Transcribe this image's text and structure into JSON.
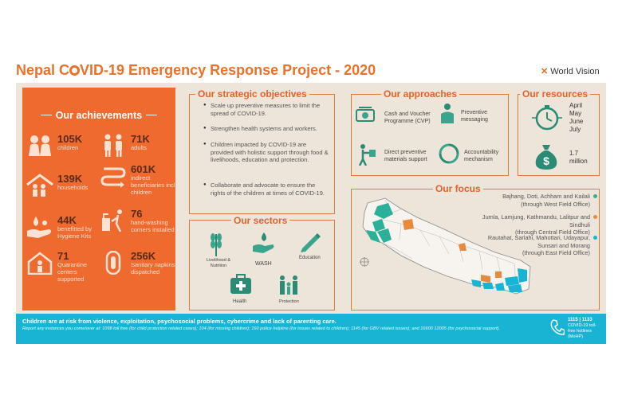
{
  "title": {
    "pre": "Nepal C",
    "post": "VID-19 Emergency Response Project - 2020"
  },
  "logo": "World Vision",
  "achievements": {
    "heading": "Our achievements",
    "items": [
      {
        "icon": "children-icon",
        "num": "105K",
        "label": "children"
      },
      {
        "icon": "adults-icon",
        "num": "71K",
        "label": "adults"
      },
      {
        "icon": "household-icon",
        "num": "139K",
        "label": "households"
      },
      {
        "icon": "beneficiaries-icon",
        "num": "601K",
        "label": "indirect beneficiaries incl. children"
      },
      {
        "icon": "hygiene-kit-icon",
        "num": "44K",
        "label": "benefitted by Hygiene Kits"
      },
      {
        "icon": "handwashing-icon",
        "num": "76",
        "label": "hand-washing corners installed"
      },
      {
        "icon": "quarantine-icon",
        "num": "71",
        "label": "Quarantine centers supported"
      },
      {
        "icon": "sanitary-napkin-icon",
        "num": "256K",
        "label": "Sanitary napkins dispatched"
      }
    ]
  },
  "objectives": {
    "heading": "Our strategic objectives",
    "items": [
      "Scale up preventive measures to limit the spread of COVID-19.",
      "Strengthen health systems and workers.",
      "Children impacted by COVID-19 are provided with holistic support through food & livelihoods, education and protection.",
      "Collaborate and advocate to ensure the rights of the children at times of COVID-19."
    ]
  },
  "sectors": {
    "heading": "Our sectors",
    "items": [
      "Livelihood & Nutrition",
      "WASH",
      "Education",
      "Health",
      "Protection"
    ]
  },
  "approaches": {
    "heading": "Our approaches",
    "items": [
      "Cash and Voucher Programme (CVP)",
      "Preventive messaging",
      "Direct preventive materials support",
      "Accountability mechanism"
    ]
  },
  "resources": {
    "heading": "Our resources",
    "months": [
      "April",
      "May",
      "June",
      "July"
    ],
    "amount": "1.7 million"
  },
  "focus": {
    "heading": "Our focus",
    "items": [
      {
        "districts": "Bajhang, Doti, Achham and Kailali",
        "office": "(through West Field Office)",
        "color": "#2bb09a"
      },
      {
        "districts": "Jumla, Lamjung, Kathmandu, Lalitpur and Sindhuli",
        "office": "(through Central Field Office)",
        "color": "#e88a3c"
      },
      {
        "districts": "Rautahat, Sarlahi, Mahottari, Udayapur, Sunsari and Morang",
        "office": "(through East Field Office)",
        "color": "#19b4d4"
      }
    ]
  },
  "banner": {
    "headline": "Children are at risk from violence, exploitation, psychosocial problems, cybercrime and lack of parenting care.",
    "note": "Report any instances you come/over at: 1098 toll free (for child protection related cases); 104 (for missing children); 160 police helpline (for issues related to children); 1145 (for GBV related issues); and 16600 12005 (for psychosocial support).",
    "hotline": "1115 | 1133",
    "hotline_note": "COVID-19 toll-free hotlines (MoHP)"
  }
}
